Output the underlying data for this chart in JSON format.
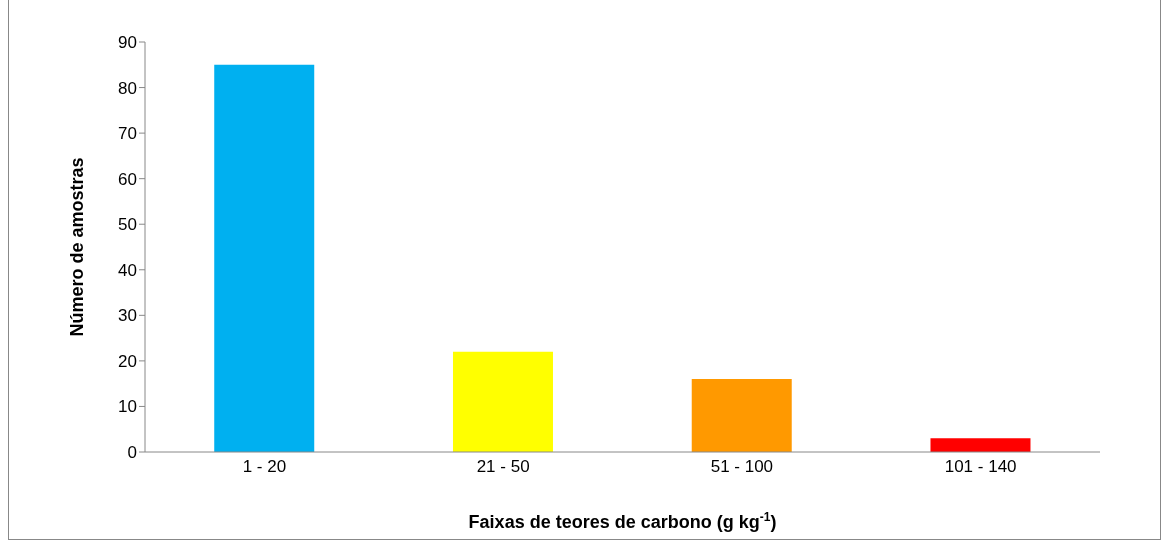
{
  "chart_data": {
    "type": "bar",
    "xlabel": "Faixas de teores de carbono (g kg$^{-1}$)",
    "ylabel": "Número de amostras",
    "categories": [
      "1 - 20",
      "21 - 50",
      "51 - 100",
      "101 - 140"
    ],
    "values": [
      85,
      22,
      16,
      3
    ],
    "colors": [
      "#00b0f0",
      "#ffff00",
      "#ff9900",
      "#ff0000"
    ],
    "ylim": [
      0,
      90
    ],
    "yticks": [
      0,
      10,
      20,
      30,
      40,
      50,
      60,
      70,
      80,
      90
    ],
    "grid": false,
    "legend": false
  }
}
